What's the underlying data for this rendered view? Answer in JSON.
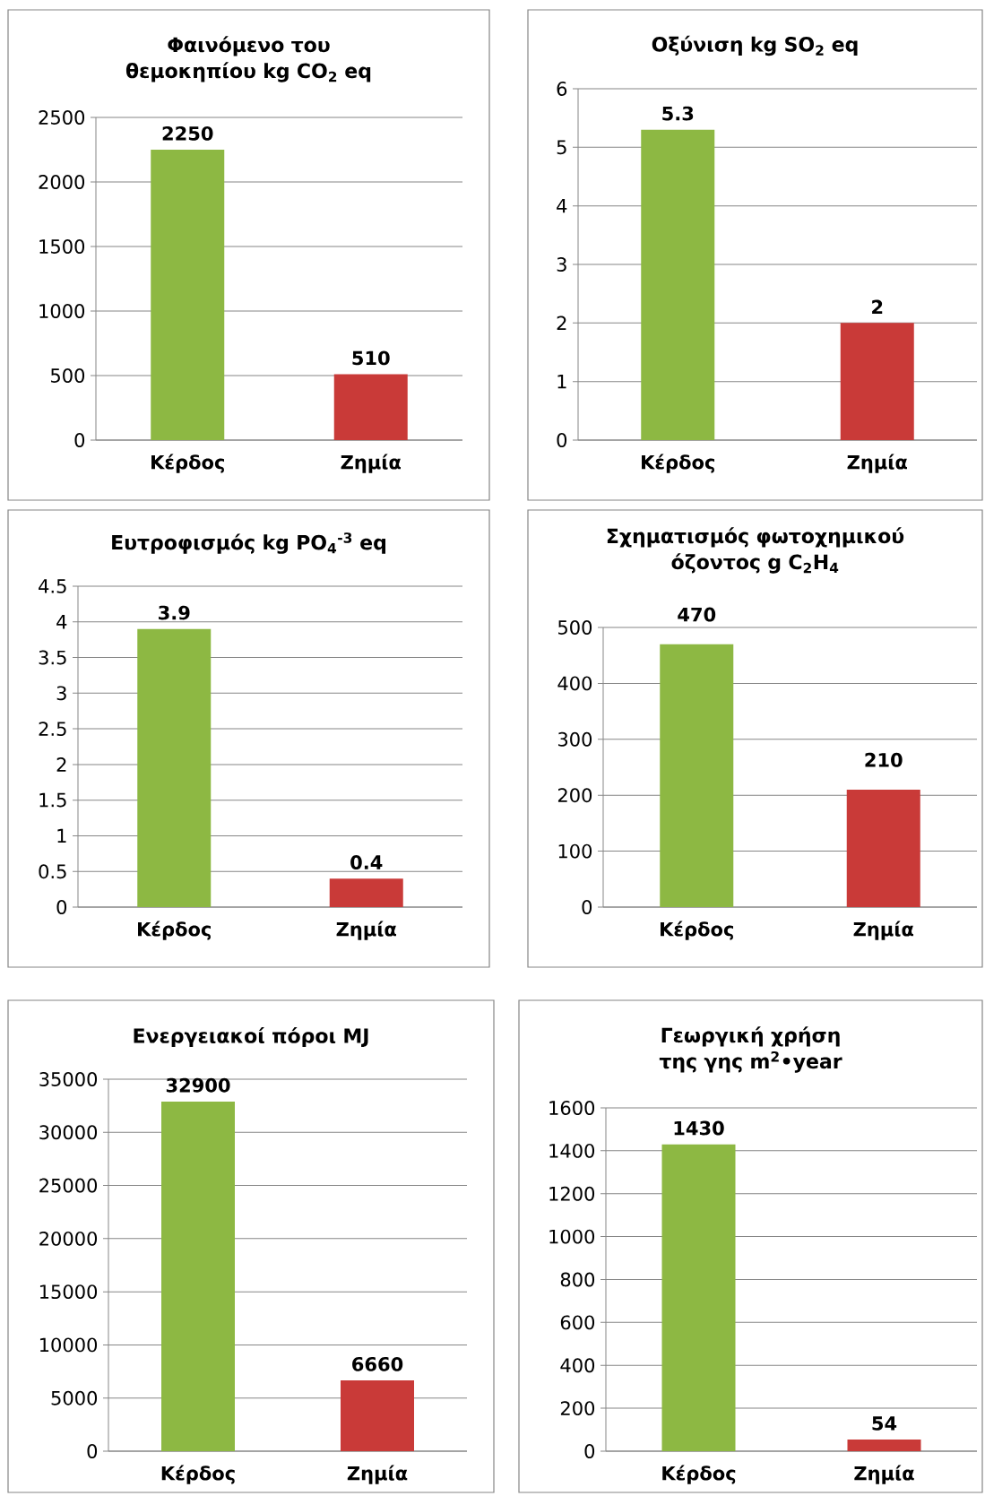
{
  "chart_data": [
    {
      "type": "bar",
      "title": "Φαινόμενο του θεμοκηπίου kg CO$_{2}$ eq",
      "categories": [
        "Κέρδος",
        "Ζημία"
      ],
      "values": [
        2250,
        510
      ],
      "colors": [
        "#8db843",
        "#c93a38"
      ],
      "ylim": [
        0,
        2500
      ],
      "yticks": [
        0,
        500,
        1000,
        1500,
        2000,
        2500
      ],
      "grid": "y",
      "data_labels": true
    },
    {
      "type": "bar",
      "title": "Οξύνιση kg SO$_{2}$ eq",
      "categories": [
        "Κέρδος",
        "Ζημία"
      ],
      "values": [
        5.3,
        2
      ],
      "colors": [
        "#8db843",
        "#c93a38"
      ],
      "ylim": [
        0,
        6
      ],
      "yticks": [
        0,
        1,
        2,
        3,
        4,
        5,
        6
      ],
      "grid": "y",
      "data_labels": true
    },
    {
      "type": "bar",
      "title": "Ευτροφισμός kg PO$_{4}$$^{-3}$ eq",
      "categories": [
        "Κέρδος",
        "Ζημία"
      ],
      "values": [
        3.9,
        0.4
      ],
      "colors": [
        "#8db843",
        "#c93a38"
      ],
      "ylim": [
        0,
        4.5
      ],
      "yticks": [
        0,
        0.5,
        1,
        1.5,
        2,
        2.5,
        3,
        3.5,
        4,
        4.5
      ],
      "grid": "y",
      "data_labels": true
    },
    {
      "type": "bar",
      "title": "Σχηματισμός φωτοχημικού όζοντος g C$_{2}$H$_{4}$",
      "categories": [
        "Κέρδος",
        "Ζημία"
      ],
      "values": [
        470,
        210
      ],
      "colors": [
        "#8db843",
        "#c93a38"
      ],
      "ylim": [
        0,
        500
      ],
      "yticks": [
        0,
        100,
        200,
        300,
        400,
        500
      ],
      "grid": "y",
      "data_labels": true
    },
    {
      "type": "bar",
      "title": "Ενεργειακοί πόροι MJ",
      "categories": [
        "Κέρδος",
        "Ζημία"
      ],
      "values": [
        32900,
        6660
      ],
      "colors": [
        "#8db843",
        "#c93a38"
      ],
      "ylim": [
        0,
        35000
      ],
      "yticks": [
        0,
        5000,
        10000,
        15000,
        20000,
        25000,
        30000,
        35000
      ],
      "grid": "y",
      "data_labels": true
    },
    {
      "type": "bar",
      "title": "Γεωργική χρήση της γης m$^{2}$•year",
      "categories": [
        "Κέρδος",
        "Ζημία"
      ],
      "values": [
        1430,
        54
      ],
      "colors": [
        "#8db843",
        "#c93a38"
      ],
      "ylim": [
        0,
        1600
      ],
      "yticks": [
        0,
        200,
        400,
        600,
        800,
        1000,
        1200,
        1400,
        1600
      ],
      "grid": "y",
      "data_labels": true
    }
  ]
}
